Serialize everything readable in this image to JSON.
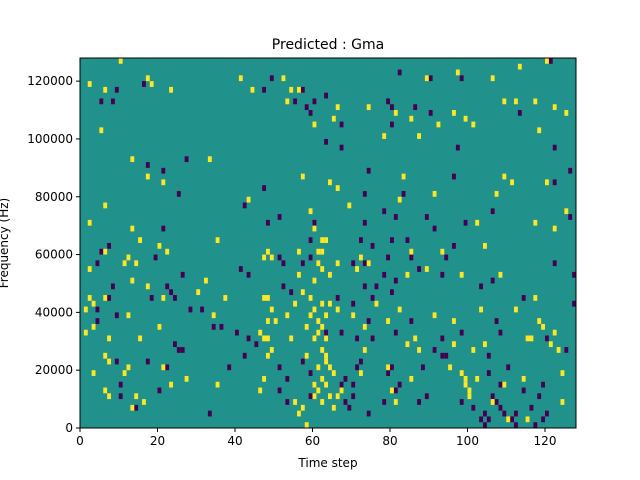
{
  "chart_data": {
    "type": "heatmap",
    "title": "Predicted : Gma",
    "xlabel": "Time step",
    "ylabel": "Frequency (Hz)",
    "xlim": [
      0,
      128
    ],
    "ylim": [
      0,
      128000
    ],
    "x_ticks": [
      0,
      20,
      40,
      60,
      80,
      100,
      120
    ],
    "y_ticks": [
      0,
      20000,
      40000,
      60000,
      80000,
      100000,
      120000
    ],
    "x_tick_labels": [
      "0",
      "20",
      "40",
      "60",
      "80",
      "100",
      "120"
    ],
    "y_tick_labels": [
      "0",
      "20000",
      "40000",
      "60000",
      "80000",
      "100000",
      "120000"
    ],
    "grid": false,
    "colormap": "viridis",
    "colors": {
      "background": "#21918c",
      "high": "#fde725",
      "low": "#440154"
    },
    "cell_size": {
      "time_steps": 1,
      "frequency_hz": 2000
    },
    "values_note_levels": {
      "low": -1,
      "background": 0,
      "high": 1
    },
    "high_cells": [
      [
        10,
        126000
      ],
      [
        120,
        126000
      ],
      [
        113,
        124000
      ],
      [
        97,
        122000
      ],
      [
        2,
        118000
      ],
      [
        106,
        120000
      ],
      [
        52,
        120000
      ],
      [
        18,
        118000
      ],
      [
        17,
        120000
      ],
      [
        89,
        120000
      ],
      [
        41,
        120000
      ],
      [
        6,
        116000
      ],
      [
        23,
        116000
      ],
      [
        44,
        116000
      ],
      [
        53,
        112000
      ],
      [
        109,
        112000
      ],
      [
        125,
        108000
      ],
      [
        54,
        116000
      ],
      [
        56,
        116000
      ],
      [
        112,
        112000
      ],
      [
        117,
        112000
      ],
      [
        66,
        110000
      ],
      [
        65,
        106000
      ],
      [
        96,
        108000
      ],
      [
        122,
        110000
      ],
      [
        74,
        110000
      ],
      [
        81,
        108000
      ],
      [
        85,
        106000
      ],
      [
        99,
        106000
      ],
      [
        60,
        104000
      ],
      [
        78,
        100000
      ],
      [
        101,
        104000
      ],
      [
        118,
        102000
      ],
      [
        92,
        104000
      ],
      [
        5,
        102000
      ],
      [
        87,
        100000
      ],
      [
        13,
        92000
      ],
      [
        33,
        92000
      ],
      [
        17,
        86000
      ],
      [
        21,
        84000
      ],
      [
        109,
        86000
      ],
      [
        57,
        86000
      ],
      [
        64,
        84000
      ],
      [
        83,
        86000
      ],
      [
        111,
        84000
      ],
      [
        120,
        84000
      ],
      [
        43,
        78000
      ],
      [
        59,
        74000
      ],
      [
        66,
        82000
      ],
      [
        91,
        80000
      ],
      [
        107,
        80000
      ],
      [
        6,
        76000
      ],
      [
        82,
        78000
      ],
      [
        69,
        76000
      ],
      [
        102,
        70000
      ],
      [
        117,
        70000
      ],
      [
        125,
        74000
      ],
      [
        2,
        70000
      ],
      [
        13,
        68000
      ],
      [
        60,
        68000
      ],
      [
        122,
        68000
      ],
      [
        35,
        64000
      ],
      [
        61,
        60000
      ],
      [
        62,
        64000
      ],
      [
        63,
        64000
      ],
      [
        48,
        60000
      ],
      [
        47,
        58000
      ],
      [
        49,
        58000
      ],
      [
        56,
        60000
      ],
      [
        61,
        56000
      ],
      [
        62,
        60000
      ],
      [
        72,
        58000
      ],
      [
        74,
        56000
      ],
      [
        85,
        60000
      ],
      [
        93,
        60000
      ],
      [
        104,
        62000
      ],
      [
        6,
        60000
      ],
      [
        15,
        64000
      ],
      [
        20,
        62000
      ],
      [
        22,
        60000
      ],
      [
        12,
        58000
      ],
      [
        14,
        56000
      ],
      [
        11,
        56000
      ],
      [
        2,
        54000
      ],
      [
        32,
        50000
      ],
      [
        56,
        52000
      ],
      [
        60,
        50000
      ],
      [
        62,
        54000
      ],
      [
        64,
        52000
      ],
      [
        66,
        56000
      ],
      [
        71,
        54000
      ],
      [
        84,
        52000
      ],
      [
        89,
        54000
      ],
      [
        98,
        52000
      ],
      [
        108,
        52000
      ],
      [
        13,
        50000
      ],
      [
        17,
        48000
      ],
      [
        21,
        44000
      ],
      [
        30,
        46000
      ],
      [
        37,
        44000
      ],
      [
        47,
        44000
      ],
      [
        48,
        44000
      ],
      [
        49,
        40000
      ],
      [
        48,
        36000
      ],
      [
        46,
        32000
      ],
      [
        47,
        30000
      ],
      [
        48,
        30000
      ],
      [
        49,
        26000
      ],
      [
        48,
        24000
      ],
      [
        55,
        42000
      ],
      [
        57,
        46000
      ],
      [
        59,
        44000
      ],
      [
        59,
        38000
      ],
      [
        58,
        34000
      ],
      [
        60,
        40000
      ],
      [
        60,
        30000
      ],
      [
        61,
        36000
      ],
      [
        61,
        32000
      ],
      [
        62,
        42000
      ],
      [
        62,
        34000
      ],
      [
        63,
        38000
      ],
      [
        63,
        30000
      ],
      [
        64,
        42000
      ],
      [
        66,
        40000
      ],
      [
        70,
        38000
      ],
      [
        73,
        34000
      ],
      [
        82,
        40000
      ],
      [
        76,
        42000
      ],
      [
        79,
        36000
      ],
      [
        91,
        38000
      ],
      [
        103,
        40000
      ],
      [
        112,
        40000
      ],
      [
        117,
        44000
      ],
      [
        2,
        44000
      ],
      [
        3,
        42000
      ],
      [
        1,
        40000
      ],
      [
        6,
        44000
      ],
      [
        12,
        38000
      ],
      [
        34,
        38000
      ],
      [
        50,
        36000
      ],
      [
        53,
        38000
      ],
      [
        96,
        36000
      ],
      [
        118,
        36000
      ],
      [
        119,
        34000
      ],
      [
        122,
        32000
      ],
      [
        1,
        32000
      ],
      [
        3,
        34000
      ],
      [
        7,
        30000
      ],
      [
        20,
        34000
      ],
      [
        15,
        30000
      ],
      [
        54,
        30000
      ],
      [
        58,
        24000
      ],
      [
        62,
        26000
      ],
      [
        61,
        20000
      ],
      [
        63,
        24000
      ],
      [
        63,
        22000
      ],
      [
        64,
        20000
      ],
      [
        65,
        18000
      ],
      [
        62,
        16000
      ],
      [
        60,
        14000
      ],
      [
        61,
        12000
      ],
      [
        63,
        14000
      ],
      [
        64,
        10000
      ],
      [
        60,
        10000
      ],
      [
        62,
        8000
      ],
      [
        65,
        6000
      ],
      [
        57,
        6000
      ],
      [
        56,
        4000
      ],
      [
        73,
        26000
      ],
      [
        84,
        28000
      ],
      [
        86,
        30000
      ],
      [
        87,
        26000
      ],
      [
        96,
        28000
      ],
      [
        101,
        26000
      ],
      [
        104,
        28000
      ],
      [
        115,
        30000
      ],
      [
        116,
        30000
      ],
      [
        121,
        28000
      ],
      [
        123,
        26000
      ],
      [
        6,
        24000
      ],
      [
        7,
        22000
      ],
      [
        12,
        20000
      ],
      [
        11,
        18000
      ],
      [
        21,
        20000
      ],
      [
        3,
        18000
      ],
      [
        23,
        14000
      ],
      [
        27,
        16000
      ],
      [
        35,
        14000
      ],
      [
        46,
        12000
      ],
      [
        47,
        16000
      ],
      [
        72,
        18000
      ],
      [
        79,
        20000
      ],
      [
        85,
        16000
      ],
      [
        95,
        20000
      ],
      [
        98,
        18000
      ],
      [
        99,
        16000
      ],
      [
        99,
        14000
      ],
      [
        100,
        12000
      ],
      [
        100,
        10000
      ],
      [
        102,
        16000
      ],
      [
        109,
        14000
      ],
      [
        114,
        16000
      ],
      [
        124,
        18000
      ],
      [
        6,
        12000
      ],
      [
        7,
        10000
      ],
      [
        14,
        10000
      ],
      [
        16,
        8000
      ],
      [
        13,
        6000
      ],
      [
        55,
        8000
      ],
      [
        66,
        10000
      ],
      [
        67,
        12000
      ],
      [
        80,
        12000
      ],
      [
        81,
        8000
      ],
      [
        106,
        8000
      ],
      [
        124,
        8000
      ],
      [
        128,
        6000
      ],
      [
        58,
        0
      ],
      [
        110,
        2000
      ],
      [
        115,
        2000
      ]
    ],
    "low_cells": [
      [
        121,
        126000
      ],
      [
        82,
        122000
      ],
      [
        90,
        120000
      ],
      [
        16,
        118000
      ],
      [
        49,
        120000
      ],
      [
        47,
        116000
      ],
      [
        57,
        116000
      ],
      [
        98,
        120000
      ],
      [
        58,
        110000
      ],
      [
        59,
        108000
      ],
      [
        67,
        104000
      ],
      [
        60,
        112000
      ],
      [
        80,
        110000
      ],
      [
        79,
        112000
      ],
      [
        86,
        110000
      ],
      [
        90,
        108000
      ],
      [
        113,
        108000
      ],
      [
        5,
        112000
      ],
      [
        63,
        114000
      ],
      [
        55,
        112000
      ],
      [
        9,
        116000
      ],
      [
        8,
        112000
      ],
      [
        80,
        104000
      ],
      [
        63,
        98000
      ],
      [
        97,
        96000
      ],
      [
        67,
        96000
      ],
      [
        122,
        96000
      ],
      [
        122,
        84000
      ],
      [
        27,
        92000
      ],
      [
        21,
        88000
      ],
      [
        17,
        90000
      ],
      [
        25,
        80000
      ],
      [
        74,
        88000
      ],
      [
        83,
        80000
      ],
      [
        96,
        86000
      ],
      [
        73,
        80000
      ],
      [
        47,
        82000
      ],
      [
        21,
        68000
      ],
      [
        42,
        76000
      ],
      [
        48,
        70000
      ],
      [
        51,
        72000
      ],
      [
        60,
        70000
      ],
      [
        78,
        74000
      ],
      [
        81,
        72000
      ],
      [
        89,
        72000
      ],
      [
        99,
        70000
      ],
      [
        106,
        74000
      ],
      [
        96,
        62000
      ],
      [
        126,
        88000
      ],
      [
        126,
        72000
      ],
      [
        73,
        70000
      ],
      [
        7,
        62000
      ],
      [
        5,
        60000
      ],
      [
        4,
        56000
      ],
      [
        72,
        64000
      ],
      [
        75,
        62000
      ],
      [
        80,
        64000
      ],
      [
        84,
        64000
      ],
      [
        91,
        68000
      ],
      [
        94,
        58000
      ],
      [
        93,
        52000
      ],
      [
        70,
        56000
      ],
      [
        73,
        56000
      ],
      [
        79,
        58000
      ],
      [
        85,
        58000
      ],
      [
        87,
        54000
      ],
      [
        59,
        64000
      ],
      [
        59,
        58000
      ],
      [
        51,
        58000
      ],
      [
        52,
        56000
      ],
      [
        57,
        56000
      ],
      [
        19,
        58000
      ],
      [
        26,
        52000
      ],
      [
        22,
        48000
      ],
      [
        23,
        46000
      ],
      [
        24,
        44000
      ],
      [
        28,
        40000
      ],
      [
        18,
        44000
      ],
      [
        43,
        52000
      ],
      [
        41,
        54000
      ],
      [
        52,
        48000
      ],
      [
        54,
        46000
      ],
      [
        66,
        44000
      ],
      [
        70,
        42000
      ],
      [
        73,
        48000
      ],
      [
        75,
        44000
      ],
      [
        78,
        52000
      ],
      [
        80,
        46000
      ],
      [
        81,
        50000
      ],
      [
        76,
        48000
      ],
      [
        103,
        48000
      ],
      [
        106,
        50000
      ],
      [
        114,
        44000
      ],
      [
        127,
        52000
      ],
      [
        127,
        42000
      ],
      [
        122,
        56000
      ],
      [
        4,
        40000
      ],
      [
        4,
        36000
      ],
      [
        7,
        44000
      ],
      [
        8,
        48000
      ],
      [
        9,
        38000
      ],
      [
        31,
        40000
      ],
      [
        36,
        34000
      ],
      [
        40,
        32000
      ],
      [
        45,
        28000
      ],
      [
        42,
        24000
      ],
      [
        43,
        30000
      ],
      [
        34,
        34000
      ],
      [
        63,
        32000
      ],
      [
        67,
        32000
      ],
      [
        71,
        30000
      ],
      [
        74,
        36000
      ],
      [
        75,
        30000
      ],
      [
        85,
        36000
      ],
      [
        81,
        32000
      ],
      [
        93,
        30000
      ],
      [
        94,
        24000
      ],
      [
        98,
        32000
      ],
      [
        108,
        32000
      ],
      [
        107,
        36000
      ],
      [
        105,
        24000
      ],
      [
        120,
        30000
      ],
      [
        125,
        26000
      ],
      [
        24,
        28000
      ],
      [
        25,
        26000
      ],
      [
        26,
        26000
      ],
      [
        17,
        22000
      ],
      [
        9,
        22000
      ],
      [
        22,
        20000
      ],
      [
        38,
        20000
      ],
      [
        51,
        20000
      ],
      [
        53,
        16000
      ],
      [
        57,
        22000
      ],
      [
        59,
        18000
      ],
      [
        60,
        14000
      ],
      [
        68,
        16000
      ],
      [
        71,
        20000
      ],
      [
        72,
        22000
      ],
      [
        70,
        14000
      ],
      [
        79,
        18000
      ],
      [
        80,
        20000
      ],
      [
        82,
        14000
      ],
      [
        88,
        20000
      ],
      [
        91,
        26000
      ],
      [
        93,
        24000
      ],
      [
        105,
        18000
      ],
      [
        108,
        14000
      ],
      [
        110,
        20000
      ],
      [
        114,
        12000
      ],
      [
        118,
        10000
      ],
      [
        119,
        14000
      ],
      [
        10,
        14000
      ],
      [
        10,
        10000
      ],
      [
        14,
        6000
      ],
      [
        20,
        12000
      ],
      [
        33,
        4000
      ],
      [
        51,
        12000
      ],
      [
        53,
        8000
      ],
      [
        59,
        10000
      ],
      [
        67,
        14000
      ],
      [
        68,
        8000
      ],
      [
        69,
        6000
      ],
      [
        70,
        10000
      ],
      [
        74,
        4000
      ],
      [
        78,
        8000
      ],
      [
        81,
        12000
      ],
      [
        87,
        8000
      ],
      [
        89,
        10000
      ],
      [
        98,
        8000
      ],
      [
        101,
        6000
      ],
      [
        104,
        4000
      ],
      [
        105,
        2000
      ],
      [
        106,
        10000
      ],
      [
        107,
        8000
      ],
      [
        108,
        6000
      ],
      [
        109,
        4000
      ],
      [
        111,
        2000
      ],
      [
        112,
        4000
      ],
      [
        116,
        6000
      ],
      [
        119,
        2000
      ],
      [
        104,
        0
      ],
      [
        112,
        0
      ],
      [
        117,
        0
      ],
      [
        103,
        2000
      ],
      [
        120,
        4000
      ]
    ]
  }
}
